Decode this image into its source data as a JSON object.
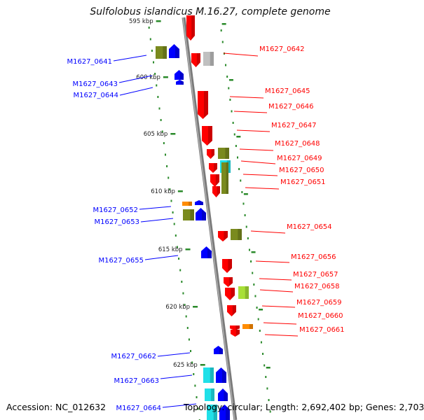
{
  "title": "Sulfolobus islandicus M.16.27, complete genome",
  "accession": "Accession: NC_012632",
  "stats": "Topology: circular; Length: 2,692,402 bp; Genes: 2,703",
  "colors": {
    "forward": "#ff0000",
    "reverse": "#0000ff",
    "backbone": "#888888",
    "tick": "#2a8a2a",
    "olive": "#7a8a1e",
    "grey": "#c0c0c0",
    "cyan": "#20e0e8",
    "orange": "#ff8c00",
    "lime": "#a8e038"
  },
  "kbp_ticks": [
    "595 kbp",
    "600 kbp",
    "605 kbp",
    "610 kbp",
    "615 kbp",
    "620 kbp",
    "625 kbp"
  ],
  "forward_genes": [
    "M1627_0642",
    "M1627_0645",
    "M1627_0646",
    "M1627_0647",
    "M1627_0648",
    "M1627_0649",
    "M1627_0650",
    "M1627_0651",
    "M1627_0654",
    "M1627_0656",
    "M1627_0657",
    "M1627_0658",
    "M1627_0659",
    "M1627_0660",
    "M1627_0661"
  ],
  "reverse_genes": [
    "M1627_0641",
    "M1627_0643",
    "M1627_0644",
    "M1627_0652",
    "M1627_0653",
    "M1627_0655",
    "M1627_0662",
    "M1627_0663",
    "M1627_0664"
  ]
}
